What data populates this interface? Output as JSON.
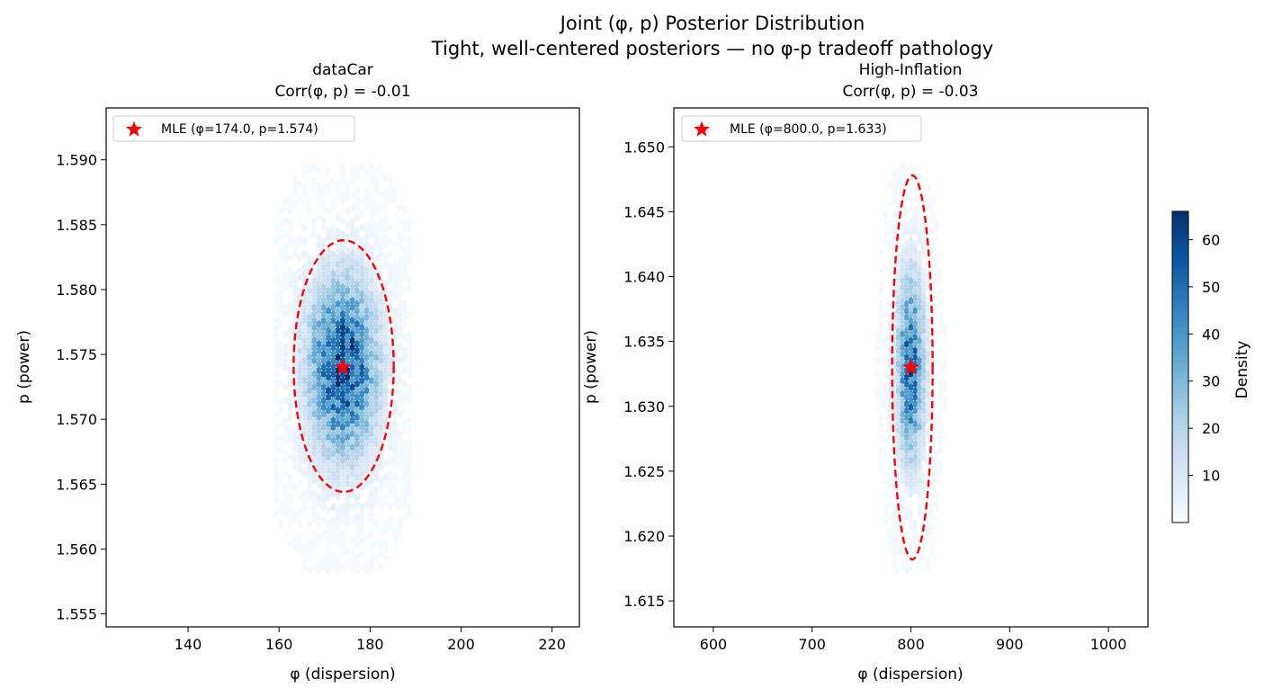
{
  "figure": {
    "title": "Joint (φ, p) Posterior Distribution",
    "subtitle": "Tight, well-centered posteriors — no φ-p tradeoff pathology"
  },
  "colorbar": {
    "label": "Density",
    "min": 0,
    "max": 66,
    "ticks": [
      10,
      20,
      30,
      40,
      50,
      60
    ],
    "colormap": "Blues"
  },
  "colors": {
    "ellipse": "#ff0000",
    "star": "#ff0000",
    "hex_low": "#f7fbff",
    "hex_high": "#08519c"
  },
  "chart_data": [
    {
      "type": "heatmap",
      "title": "dataCar",
      "subtitle": "Corr(φ, p) = -0.01",
      "xlabel": "φ (dispersion)",
      "ylabel": "p (power)",
      "xlim": [
        122,
        226
      ],
      "ylim": [
        1.554,
        1.594
      ],
      "xticks": [
        140,
        160,
        180,
        200,
        220
      ],
      "yticks": [
        1.555,
        1.56,
        1.565,
        1.57,
        1.575,
        1.58,
        1.585,
        1.59
      ],
      "ytick_decimals": 3,
      "center": {
        "x": 174.0,
        "y": 1.574
      },
      "spread": {
        "x": 5.3,
        "y": 0.0047
      },
      "peak_density": 62,
      "ellipse": {
        "cx": 174.2,
        "cy": 1.5741,
        "rx": 11.0,
        "ry": 0.0097,
        "style": "dashed"
      },
      "mle": {
        "x": 174.0,
        "y": 1.574,
        "marker": "star"
      },
      "legend": {
        "label": "MLE (φ=174.0, p=1.574)",
        "position": "upper left"
      }
    },
    {
      "type": "heatmap",
      "title": "High-Inflation",
      "subtitle": "Corr(φ, p) = -0.03",
      "xlabel": "φ (dispersion)",
      "ylabel": "p (power)",
      "xlim": [
        560,
        1040
      ],
      "ylim": [
        1.613,
        1.653
      ],
      "xticks": [
        600,
        700,
        800,
        900,
        1000
      ],
      "yticks": [
        1.615,
        1.62,
        1.625,
        1.63,
        1.635,
        1.64,
        1.645,
        1.65
      ],
      "ytick_decimals": 3,
      "center": {
        "x": 800.0,
        "y": 1.633
      },
      "spread": {
        "x": 9.5,
        "y": 0.0049
      },
      "peak_density": 55,
      "ellipse": {
        "cx": 801.5,
        "cy": 1.633,
        "rx": 20.5,
        "ry": 0.0148,
        "style": "dashed"
      },
      "mle": {
        "x": 800.0,
        "y": 1.633,
        "marker": "star"
      },
      "legend": {
        "label": "MLE (φ=800.0, p=1.633)",
        "position": "upper left"
      }
    }
  ]
}
